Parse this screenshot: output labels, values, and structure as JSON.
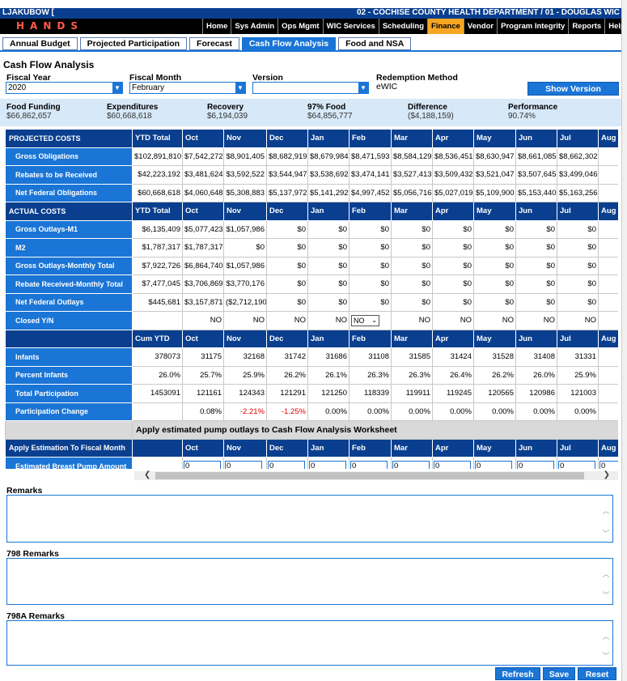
{
  "header": {
    "user": "LJAKUBOW [",
    "department": "02 - COCHISE COUNTY HEALTH DEPARTMENT / 01 - DOUGLAS WIC",
    "logo_text": "HANDS"
  },
  "main_nav": [
    "Home",
    "Sys Admin",
    "Ops Mgmt",
    "WIC Services",
    "Scheduling",
    "Finance",
    "Vendor",
    "Program Integrity",
    "Reports",
    "Help"
  ],
  "main_nav_active": "Finance",
  "sub_tabs": [
    "Annual Budget",
    "Projected Participation",
    "Forecast",
    "Cash Flow Analysis",
    "Food and NSA"
  ],
  "sub_tab_active": "Cash Flow Analysis",
  "page_title": "Cash Flow Analysis",
  "filters": {
    "fiscal_year_label": "Fiscal Year",
    "fiscal_year_value": "2020",
    "fiscal_month_label": "Fiscal Month",
    "fiscal_month_value": "February",
    "version_label": "Version",
    "version_value": "",
    "redemption_label": "Redemption Method",
    "redemption_value": "eWIC",
    "show_version_button": "Show Version"
  },
  "summary": [
    {
      "label": "Food Funding",
      "value": "$66,862,657"
    },
    {
      "label": "Expenditures",
      "value": "$60,668,618"
    },
    {
      "label": "Recovery",
      "value": "$6,194,039"
    },
    {
      "label": "97% Food",
      "value": "$64,856,777"
    },
    {
      "label": "Difference",
      "value": "($4,188,159)"
    },
    {
      "label": "Performance",
      "value": "90.74%"
    }
  ],
  "months": [
    "Oct",
    "Nov",
    "Dec",
    "Jan",
    "Feb",
    "Mar",
    "Apr",
    "May",
    "Jun",
    "Jul",
    "Aug"
  ],
  "projected": {
    "header": "PROJECTED COSTS",
    "total_label": "YTD Total",
    "rows": [
      {
        "label": "Gross Obligations",
        "values": [
          "$102,891,810",
          "$7,542,272",
          "$8,901,405",
          "$8,682,919",
          "$8,679,984",
          "$8,471,593",
          "$8,584,129",
          "$8,536,451",
          "$8,630,947",
          "$8,661,085",
          "$8,662,302",
          "$8,8"
        ]
      },
      {
        "label": "Rebates to be Received",
        "values": [
          "$42,223,192",
          "$3,481,624",
          "$3,592,522",
          "$3,544,947",
          "$3,538,692",
          "$3,474,141",
          "$3,527,413",
          "$3,509,432",
          "$3,521,047",
          "$3,507,645",
          "$3,499,046",
          "$3,5"
        ]
      },
      {
        "label": "Net Federal Obligations",
        "values": [
          "$60,668,618",
          "$4,060,648",
          "$5,308,883",
          "$5,137,972",
          "$5,141,292",
          "$4,997,452",
          "$5,056,716",
          "$5,027,019",
          "$5,109,900",
          "$5,153,440",
          "$5,163,256",
          "$5,2"
        ]
      }
    ]
  },
  "actual": {
    "header": "ACTUAL COSTS",
    "total_label": "YTD Total",
    "rows": [
      {
        "label": "Gross Outlays-M1",
        "values": [
          "$6,135,409",
          "$5,077,423",
          "$1,057,986",
          "$0",
          "$0",
          "$0",
          "$0",
          "$0",
          "$0",
          "$0",
          "$0",
          ""
        ]
      },
      {
        "label": "M2",
        "values": [
          "$1,787,317",
          "$1,787,317",
          "$0",
          "$0",
          "$0",
          "$0",
          "$0",
          "$0",
          "$0",
          "$0",
          "$0",
          ""
        ]
      },
      {
        "label": "Gross Outlays-Monthly Total",
        "values": [
          "$7,922,726",
          "$6,864,740",
          "$1,057,986",
          "$0",
          "$0",
          "$0",
          "$0",
          "$0",
          "$0",
          "$0",
          "$0",
          ""
        ]
      },
      {
        "label": "Rebate Received-Monthly Total",
        "values": [
          "$7,477,045",
          "$3,706,869",
          "$3,770,176",
          "$0",
          "$0",
          "$0",
          "$0",
          "$0",
          "$0",
          "$0",
          "$0",
          ""
        ]
      },
      {
        "label": "Net Federal Outlays",
        "values": [
          "$445,681",
          "$3,157,871",
          "($2,712,190)",
          "$0",
          "$0",
          "$0",
          "$0",
          "$0",
          "$0",
          "$0",
          "$0",
          ""
        ]
      },
      {
        "label": "Closed Y/N",
        "values": [
          "",
          "NO",
          "NO",
          "NO",
          "NO",
          "NO",
          "NO",
          "NO",
          "NO",
          "NO",
          "NO",
          ""
        ]
      }
    ]
  },
  "participation": {
    "total_label": "Cum YTD",
    "rows": [
      {
        "label": "Infants",
        "values": [
          "378073",
          "31175",
          "32168",
          "31742",
          "31686",
          "31108",
          "31585",
          "31424",
          "31528",
          "31408",
          "31331",
          ""
        ]
      },
      {
        "label": "Percent Infants",
        "values": [
          "26.0%",
          "25.7%",
          "25.9%",
          "26.2%",
          "26.1%",
          "26.3%",
          "26.3%",
          "26.4%",
          "26.2%",
          "26.0%",
          "25.9%",
          ""
        ]
      },
      {
        "label": "Total Participation",
        "values": [
          "1453091",
          "121161",
          "124343",
          "121291",
          "121250",
          "118339",
          "119911",
          "119245",
          "120565",
          "120986",
          "121003",
          ""
        ]
      },
      {
        "label": "Participation Change",
        "values": [
          "",
          "0.08%",
          "-2.21%",
          "-1.25%",
          "0.00%",
          "0.00%",
          "0.00%",
          "0.00%",
          "0.00%",
          "0.00%",
          "0.00%",
          ""
        ]
      }
    ]
  },
  "pump": {
    "banner": "Apply estimated pump outlays to Cash Flow Analysis Worksheet",
    "apply_label": "Apply Estimation To Fiscal Month",
    "amount_label": "Estimated Breast Pump Amount",
    "default_value": "0"
  },
  "remarks": [
    {
      "label": "Remarks"
    },
    {
      "label": "798 Remarks"
    },
    {
      "label": "798A Remarks"
    }
  ],
  "buttons": {
    "refresh": "Refresh",
    "save": "Save",
    "reset": "Reset"
  },
  "colors": {
    "primary": "#1a75d6",
    "header_dark": "#0a3f8f",
    "active_nav": "#f6a623",
    "negative": "#e00000"
  }
}
